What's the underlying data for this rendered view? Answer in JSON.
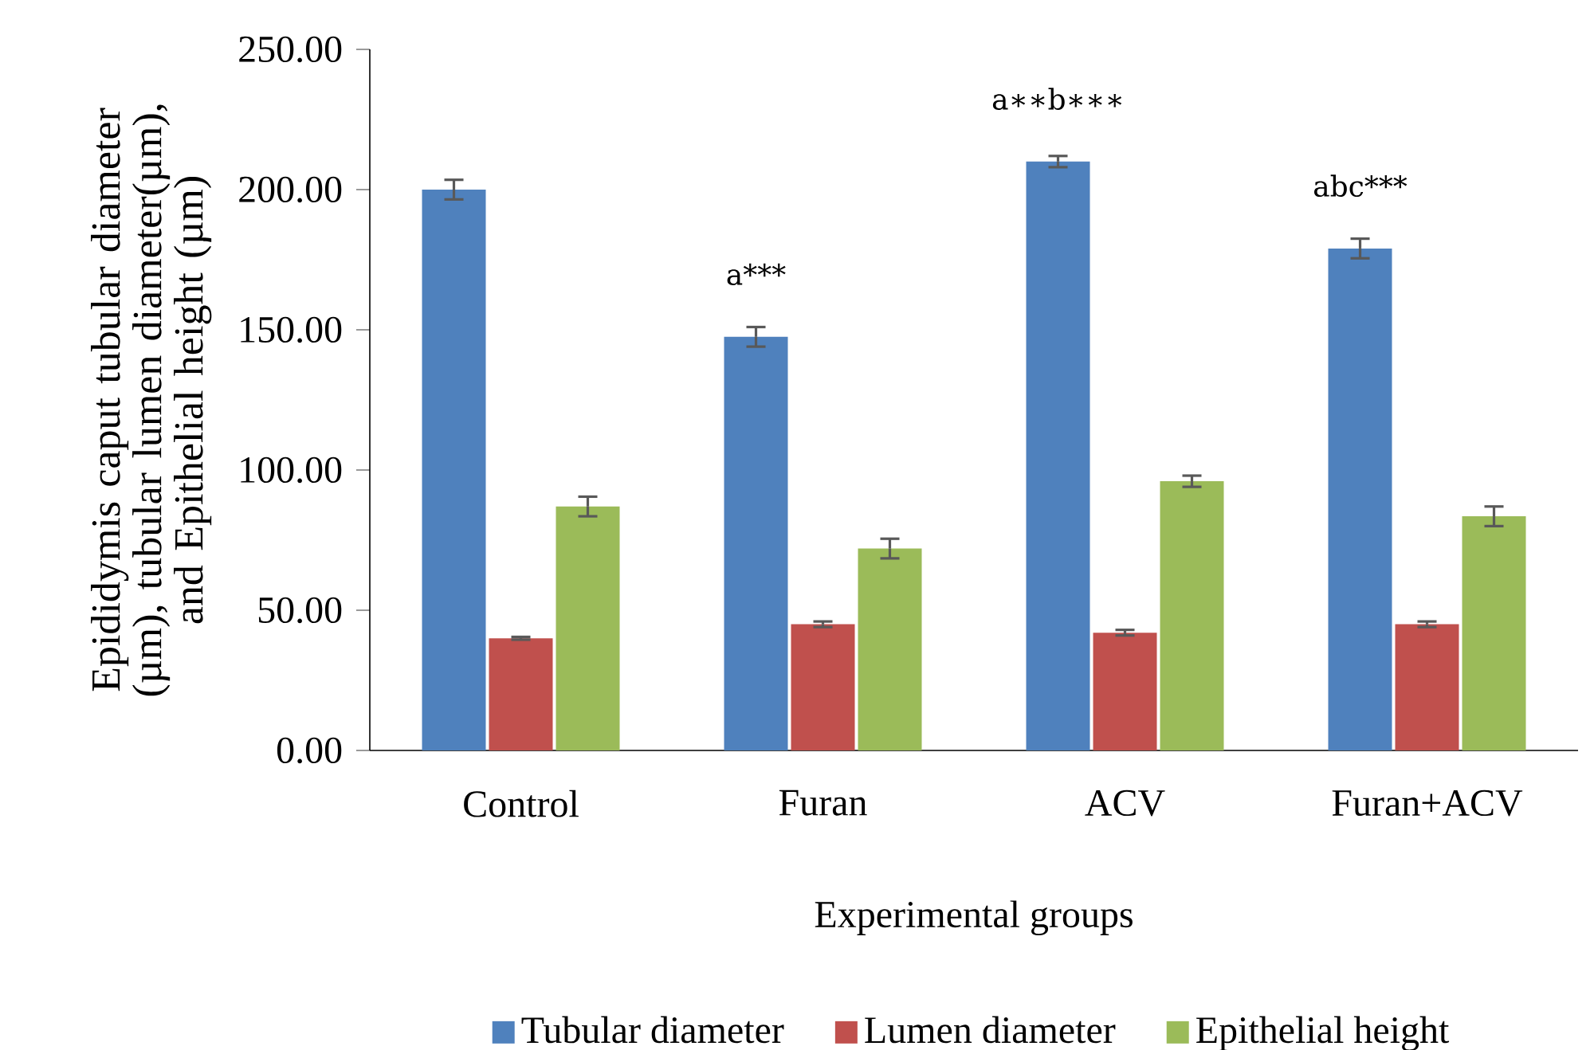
{
  "chart_data": {
    "type": "bar",
    "xlabel": "Experimental groups",
    "ylabel": "Epididymis caput  tubular diameter (µm), tubular lumen diameter(µm), and Epithelial height (µm)",
    "categories": [
      "Control",
      "Furan",
      "ACV",
      "Furan+ACV"
    ],
    "series": [
      {
        "name": "Tubular diameter",
        "color": "#4f81bd",
        "values": [
          200,
          147.5,
          210,
          179
        ],
        "errors": [
          3.5,
          3.5,
          2,
          3.5
        ]
      },
      {
        "name": "Lumen diameter",
        "color": "#c0504d",
        "values": [
          40,
          45,
          42,
          45
        ],
        "errors": [
          0.5,
          1,
          1,
          1
        ]
      },
      {
        "name": "Epithelial height",
        "color": "#9bbb59",
        "values": [
          87,
          72,
          96,
          83.5
        ],
        "errors": [
          3.5,
          3.5,
          2,
          3.5
        ]
      }
    ],
    "ylim": [
      0,
      250
    ],
    "yticks": [
      {
        "value": 0,
        "label": "0.00"
      },
      {
        "value": 50,
        "label": "50.00"
      },
      {
        "value": 100,
        "label": "100.00"
      },
      {
        "value": 150,
        "label": "150.00"
      },
      {
        "value": 200,
        "label": "200.00"
      },
      {
        "value": 250,
        "label": "250.00"
      }
    ],
    "annotations": [
      "a***",
      "a∗∗b∗∗∗",
      "abc***"
    ],
    "legend": "bottom",
    "grid": false
  }
}
